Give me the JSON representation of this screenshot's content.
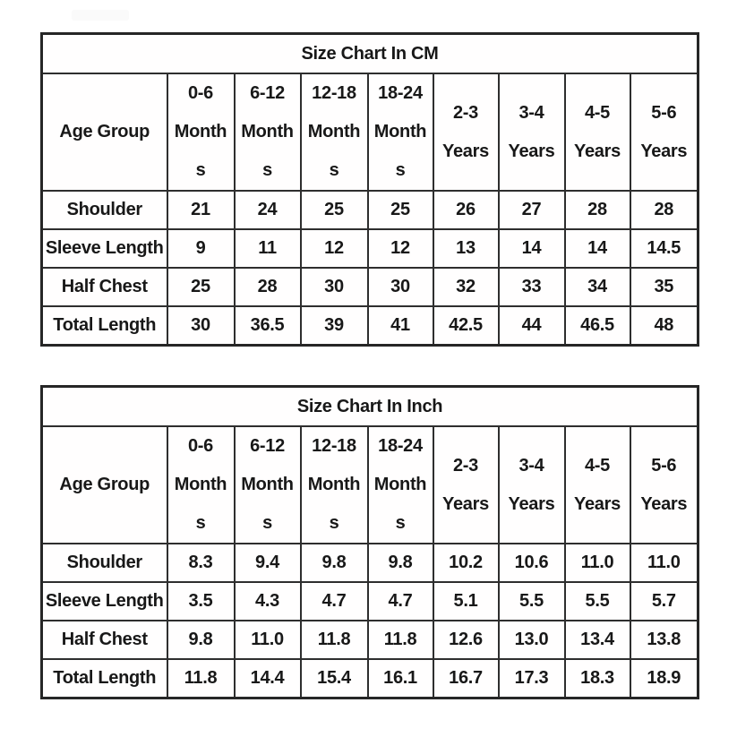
{
  "page": {
    "background": "#ffffff",
    "border_color": "#2e2e2e",
    "text_color": "#181818",
    "watermark_color": "#fafafa"
  },
  "chart_data": [
    {
      "type": "table",
      "title": "Size Chart In CM",
      "unit": "cm",
      "corner_header": "Age Group",
      "age_groups": [
        "0-6 Months",
        "6-12 Months",
        "12-18 Months",
        "18-24 Months",
        "2-3 Years",
        "3-4 Years",
        "4-5 Years",
        "5-6 Years"
      ],
      "header_lines": [
        [
          "0-6",
          "Month",
          "s"
        ],
        [
          "6-12",
          "Month",
          "s"
        ],
        [
          "12-18",
          "Month",
          "s"
        ],
        [
          "18-24",
          "Month",
          "s"
        ],
        [
          "2-3",
          "Years"
        ],
        [
          "3-4",
          "Years"
        ],
        [
          "4-5",
          "Years"
        ],
        [
          "5-6",
          "Years"
        ]
      ],
      "rows": [
        {
          "label": "Shoulder",
          "values": [
            "21",
            "24",
            "25",
            "25",
            "26",
            "27",
            "28",
            "28"
          ]
        },
        {
          "label": "Sleeve Length",
          "values": [
            "9",
            "11",
            "12",
            "12",
            "13",
            "14",
            "14",
            "14.5"
          ]
        },
        {
          "label": "Half Chest",
          "values": [
            "25",
            "28",
            "30",
            "30",
            "32",
            "33",
            "34",
            "35"
          ]
        },
        {
          "label": "Total Length",
          "values": [
            "30",
            "36.5",
            "39",
            "41",
            "42.5",
            "44",
            "46.5",
            "48"
          ]
        }
      ]
    },
    {
      "type": "table",
      "title": "Size Chart In Inch",
      "unit": "inch",
      "corner_header": "Age Group",
      "age_groups": [
        "0-6 Months",
        "6-12 Months",
        "12-18 Months",
        "18-24 Months",
        "2-3 Years",
        "3-4 Years",
        "4-5 Years",
        "5-6 Years"
      ],
      "header_lines": [
        [
          "0-6",
          "Month",
          "s"
        ],
        [
          "6-12",
          "Month",
          "s"
        ],
        [
          "12-18",
          "Month",
          "s"
        ],
        [
          "18-24",
          "Month",
          "s"
        ],
        [
          "2-3",
          "Years"
        ],
        [
          "3-4",
          "Years"
        ],
        [
          "4-5",
          "Years"
        ],
        [
          "5-6",
          "Years"
        ]
      ],
      "rows": [
        {
          "label": "Shoulder",
          "values": [
            "8.3",
            "9.4",
            "9.8",
            "9.8",
            "10.2",
            "10.6",
            "11.0",
            "11.0"
          ]
        },
        {
          "label": "Sleeve Length",
          "values": [
            "3.5",
            "4.3",
            "4.7",
            "4.7",
            "5.1",
            "5.5",
            "5.5",
            "5.7"
          ]
        },
        {
          "label": "Half Chest",
          "values": [
            "9.8",
            "11.0",
            "11.8",
            "11.8",
            "12.6",
            "13.0",
            "13.4",
            "13.8"
          ]
        },
        {
          "label": "Total Length",
          "values": [
            "11.8",
            "14.4",
            "15.4",
            "16.1",
            "16.7",
            "17.3",
            "18.3",
            "18.9"
          ]
        }
      ]
    }
  ]
}
